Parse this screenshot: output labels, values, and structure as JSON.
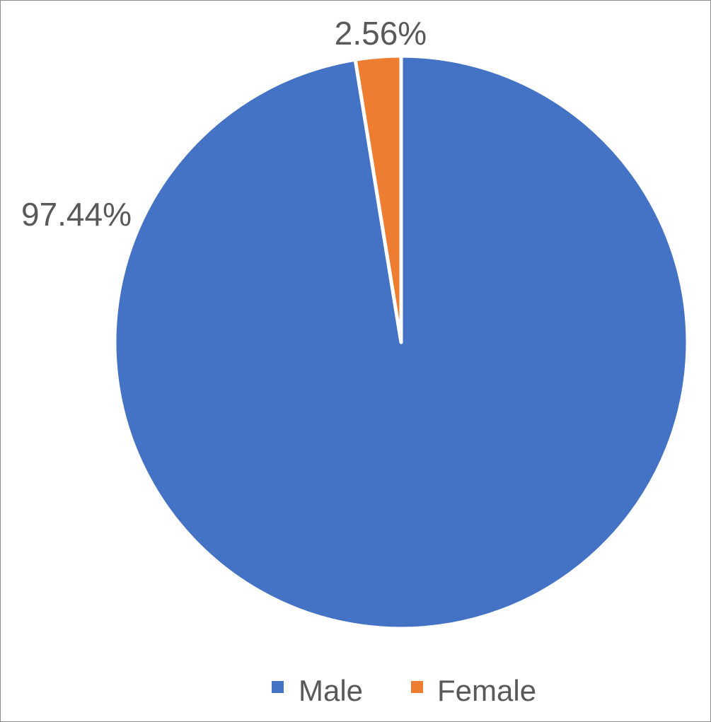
{
  "chart_data": {
    "type": "pie",
    "categories": [
      "Male",
      "Female"
    ],
    "values": [
      97.44,
      2.56
    ],
    "value_labels": [
      "97.44%",
      "2.56%"
    ],
    "colors": [
      "#4472C4",
      "#ED7D31"
    ],
    "start_angle_deg": 0,
    "direction": "clockwise",
    "legend": {
      "placement": "bottom",
      "entries": [
        "Male",
        "Female"
      ]
    }
  }
}
